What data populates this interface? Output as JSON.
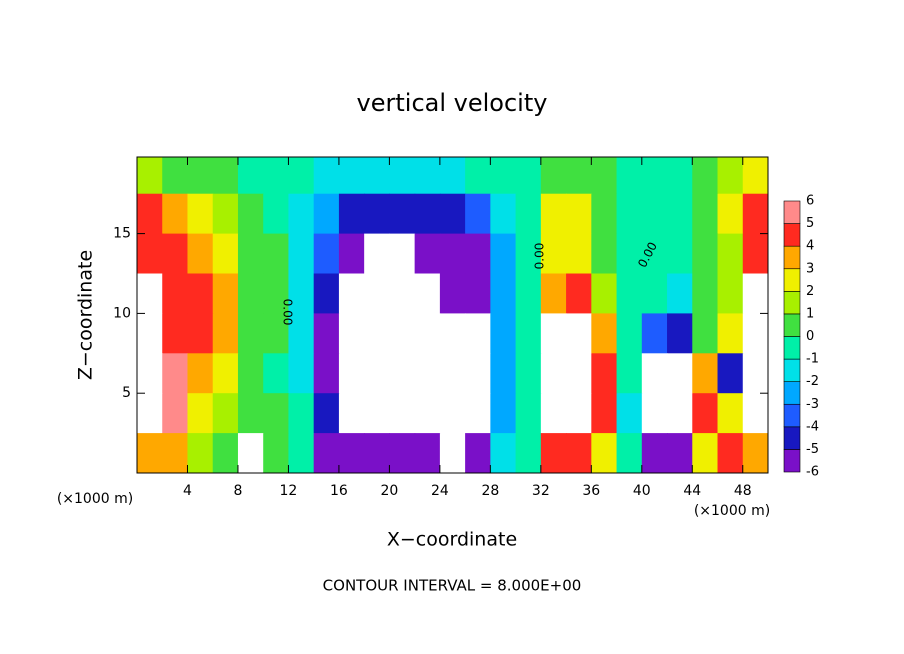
{
  "chart_data": {
    "type": "heatmap",
    "title": "vertical velocity",
    "x_label": "X−coordinate",
    "y_label": "Z−coordinate",
    "x_unit_label": "(×1000 m)",
    "x_unit_label_right": "(×1000 m)",
    "footer": "CONTOUR INTERVAL = 8.000E+00",
    "annotations": [
      "0.00",
      "0.00",
      "0.00"
    ],
    "xlim": [
      0,
      50
    ],
    "xticks": [
      4,
      8,
      12,
      16,
      20,
      24,
      28,
      32,
      36,
      40,
      44,
      48
    ],
    "ylim": [
      0,
      19.8
    ],
    "yticks": [
      5,
      10,
      15
    ],
    "x": [
      1,
      3,
      5,
      7,
      9,
      11,
      13,
      15,
      17,
      19,
      21,
      23,
      25,
      27,
      29,
      31,
      33,
      35,
      37,
      39,
      41,
      43,
      45,
      47,
      49
    ],
    "z": [
      18.75,
      16.25,
      13.75,
      11.25,
      8.75,
      6.25,
      3.75,
      1.25
    ],
    "values": [
      [
        2,
        1,
        1,
        0.5,
        0,
        0,
        -0.5,
        -1,
        -1.5,
        -1.5,
        -1.5,
        -1.5,
        -1,
        -0.5,
        0,
        0,
        1,
        1,
        0.5,
        0,
        0,
        0,
        1,
        2,
        3
      ],
      [
        5,
        4,
        3,
        2,
        0.5,
        0,
        -1,
        -2,
        -4,
        -4.5,
        -4.5,
        -4.5,
        -4,
        -3,
        -1,
        0,
        3,
        3,
        1,
        0,
        0,
        -0.5,
        0.5,
        3,
        5
      ],
      [
        5,
        5,
        4,
        3,
        1,
        0.5,
        -1,
        -3,
        -5,
        -8,
        -8,
        -5,
        -5,
        -5,
        -2,
        0,
        3,
        3,
        1,
        0,
        0,
        -0.5,
        0.5,
        2,
        5
      ],
      [
        8,
        5,
        5,
        4,
        1,
        0.5,
        -1,
        -4,
        -8,
        -8,
        -8,
        -8,
        -5,
        -5,
        -2,
        0,
        4,
        5,
        2,
        0,
        -0.5,
        -1,
        0.5,
        2,
        8
      ],
      [
        8,
        5,
        5,
        4,
        1,
        0.5,
        -1,
        -5,
        -8,
        -8,
        -8,
        -8,
        -8,
        -8,
        -2,
        0,
        8,
        8,
        4,
        0,
        -3,
        -4,
        0.5,
        3,
        8
      ],
      [
        8,
        6,
        4,
        3,
        1,
        0,
        -1,
        -5,
        -8,
        -8,
        -8,
        -8,
        -8,
        -8,
        -2,
        0,
        8,
        8,
        5,
        0,
        -8,
        -8,
        4,
        -4,
        8
      ],
      [
        8,
        6,
        3,
        2,
        1,
        1,
        0,
        -4,
        -8,
        -8,
        -8,
        -8,
        -8,
        -8,
        -2,
        0,
        8,
        8,
        5,
        -1,
        -8,
        -8,
        5,
        3,
        8
      ],
      [
        4,
        4,
        2,
        1,
        8,
        0.5,
        0,
        -5,
        -5,
        -6,
        -6,
        -5,
        -8,
        -5,
        -1,
        0,
        5,
        5,
        3,
        0,
        -5,
        -6,
        3,
        5,
        4
      ]
    ],
    "out_of_range_color": "#ffffff",
    "colorbar": {
      "levels": [
        -6,
        -5,
        -4,
        -3,
        -2,
        -1,
        0,
        1,
        2,
        3,
        4,
        5,
        6
      ],
      "colors": [
        "#7a10c8",
        "#1818c0",
        "#1e5cff",
        "#00a8ff",
        "#00e0e8",
        "#00f0a8",
        "#40e040",
        "#a8f000",
        "#f0f000",
        "#ffa800",
        "#ff2a20",
        "#ff8a8a"
      ]
    }
  }
}
